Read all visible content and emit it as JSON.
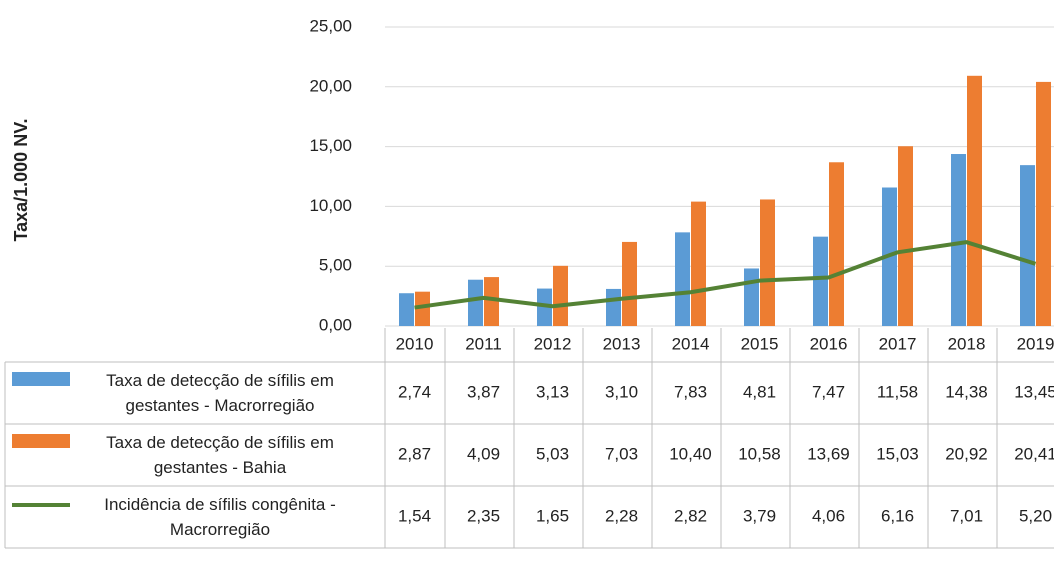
{
  "chart_data": {
    "type": "bar",
    "ylabel": "Taxa/1.000 NV.",
    "categories": [
      "2010",
      "2011",
      "2012",
      "2013",
      "2014",
      "2015",
      "2016",
      "2017",
      "2018",
      "2019"
    ],
    "ylim": [
      0,
      25
    ],
    "yticks": [
      {
        "value": 0,
        "label": "0,00"
      },
      {
        "value": 5,
        "label": "5,00"
      },
      {
        "value": 10,
        "label": "10,00"
      },
      {
        "value": 15,
        "label": "15,00"
      },
      {
        "value": 20,
        "label": "20,00"
      },
      {
        "value": 25,
        "label": "25,00"
      }
    ],
    "grid": true,
    "series": [
      {
        "name": "Taxa de detecção de sífilis em gestantes - Macrorregião",
        "type": "bar",
        "color": "#5b9bd5",
        "values": [
          2.74,
          3.87,
          3.13,
          3.1,
          7.83,
          4.81,
          7.47,
          11.58,
          14.38,
          13.45
        ],
        "value_labels": [
          "2,74",
          "3,87",
          "3,13",
          "3,10",
          "7,83",
          "4,81",
          "7,47",
          "11,58",
          "14,38",
          "13,45"
        ]
      },
      {
        "name": "Taxa de detecção de sífilis em gestantes - Bahia",
        "type": "bar",
        "color": "#ed7d31",
        "values": [
          2.87,
          4.09,
          5.03,
          7.03,
          10.4,
          10.58,
          13.69,
          15.03,
          20.92,
          20.41
        ],
        "value_labels": [
          "2,87",
          "4,09",
          "5,03",
          "7,03",
          "10,40",
          "10,58",
          "13,69",
          "15,03",
          "20,92",
          "20,41"
        ]
      },
      {
        "name": "Incidência de sífilis congênita - Macrorregião",
        "type": "line",
        "color": "#548235",
        "values": [
          1.54,
          2.35,
          1.65,
          2.28,
          2.82,
          3.79,
          4.06,
          6.16,
          7.01,
          5.2
        ],
        "value_labels": [
          "1,54",
          "2,35",
          "1,65",
          "2,28",
          "2,82",
          "3,79",
          "4,06",
          "6,16",
          "7,01",
          "5,20"
        ]
      }
    ]
  }
}
